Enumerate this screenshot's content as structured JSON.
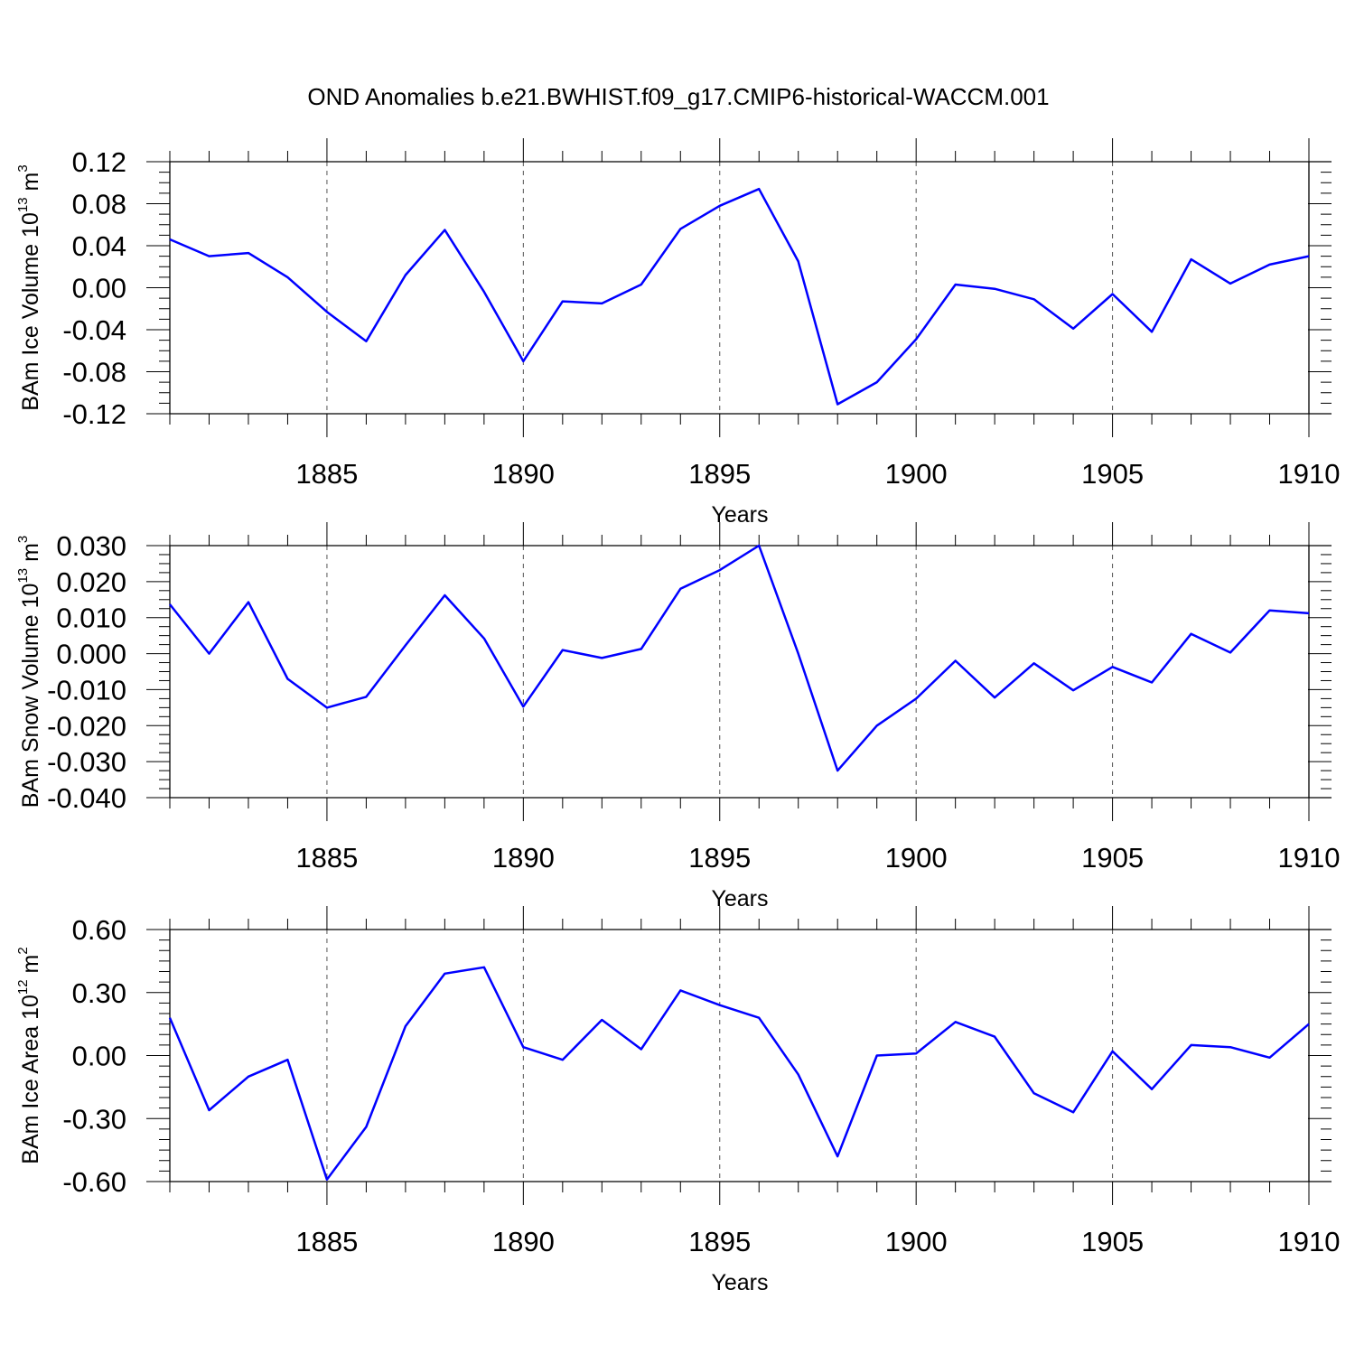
{
  "title": "OND Anomalies b.e21.BWHIST.f09_g17.CMIP6-historical-WACCM.001",
  "chart_data": [
    {
      "type": "line",
      "ylabel": {
        "base": "BAm Ice Volume 10",
        "sup": "13",
        "mid": " m",
        "sup2": "3"
      },
      "xlabel": "Years",
      "xlim": [
        1881,
        1910
      ],
      "ylim": [
        -0.12,
        0.12
      ],
      "xticks": [
        "1885",
        "1890",
        "1895",
        "1900",
        "1905",
        "1910"
      ],
      "yticks": [
        "0.12",
        "0.08",
        "0.04",
        "0.00",
        "-0.04",
        "-0.08",
        "-0.12"
      ],
      "grid": "dashed vertical lines at major x ticks",
      "color": "#0000ff",
      "x": [
        1881,
        1882,
        1883,
        1884,
        1885,
        1886,
        1887,
        1888,
        1889,
        1890,
        1891,
        1892,
        1893,
        1894,
        1895,
        1896,
        1897,
        1898,
        1899,
        1900,
        1901,
        1902,
        1903,
        1904,
        1905,
        1906,
        1907,
        1908,
        1909,
        1910
      ],
      "y": [
        0.046,
        0.03,
        0.033,
        0.01,
        -0.023,
        -0.051,
        0.012,
        0.055,
        -0.004,
        -0.07,
        -0.013,
        -0.015,
        0.003,
        0.056,
        0.078,
        0.094,
        0.025,
        -0.111,
        -0.09,
        -0.049,
        0.003,
        -0.001,
        -0.011,
        -0.039,
        -0.006,
        -0.042,
        0.027,
        0.004,
        0.022,
        0.03
      ]
    },
    {
      "type": "line",
      "ylabel": {
        "base": "BAm Snow Volume 10",
        "sup": "13",
        "mid": " m",
        "sup2": "3"
      },
      "xlabel": "Years",
      "xlim": [
        1881,
        1910
      ],
      "ylim": [
        -0.04,
        0.03
      ],
      "xticks": [
        "1885",
        "1890",
        "1895",
        "1900",
        "1905",
        "1910"
      ],
      "yticks": [
        "0.030",
        "0.020",
        "0.010",
        "0.000",
        "-0.010",
        "-0.020",
        "-0.030",
        "-0.040"
      ],
      "grid": "dashed vertical lines at major x ticks",
      "color": "#0000ff",
      "x": [
        1881,
        1882,
        1883,
        1884,
        1885,
        1886,
        1887,
        1888,
        1889,
        1890,
        1891,
        1892,
        1893,
        1894,
        1895,
        1896,
        1897,
        1898,
        1899,
        1900,
        1901,
        1902,
        1903,
        1904,
        1905,
        1906,
        1907,
        1908,
        1909,
        1910
      ],
      "y": [
        0.0137,
        0.0,
        0.0143,
        -0.007,
        -0.015,
        -0.012,
        0.0023,
        0.0162,
        0.0042,
        -0.0147,
        0.001,
        -0.0012,
        0.0013,
        0.018,
        0.0232,
        0.03,
        0.0,
        -0.0325,
        -0.02,
        -0.0125,
        -0.002,
        -0.0122,
        -0.0027,
        -0.0102,
        -0.0037,
        -0.008,
        0.0055,
        0.0003,
        0.012,
        0.0112
      ]
    },
    {
      "type": "line",
      "ylabel": {
        "base": "BAm Ice Area 10",
        "sup": "12",
        "mid": " m",
        "sup2": "2"
      },
      "xlabel": "Years",
      "xlim": [
        1881,
        1910
      ],
      "ylim": [
        -0.6,
        0.6
      ],
      "xticks": [
        "1885",
        "1890",
        "1895",
        "1900",
        "1905",
        "1910"
      ],
      "yticks": [
        "0.60",
        "0.30",
        "0.00",
        "-0.30",
        "-0.60"
      ],
      "grid": "dashed vertical lines at major x ticks",
      "color": "#0000ff",
      "x": [
        1881,
        1882,
        1883,
        1884,
        1885,
        1886,
        1887,
        1888,
        1889,
        1890,
        1891,
        1892,
        1893,
        1894,
        1895,
        1896,
        1897,
        1898,
        1899,
        1900,
        1901,
        1902,
        1903,
        1904,
        1905,
        1906,
        1907,
        1908,
        1909,
        1910
      ],
      "y": [
        0.18,
        -0.26,
        -0.1,
        -0.02,
        -0.59,
        -0.34,
        0.14,
        0.39,
        0.42,
        0.04,
        -0.02,
        0.17,
        0.03,
        0.31,
        0.24,
        0.18,
        -0.09,
        -0.48,
        0.0,
        0.01,
        0.16,
        0.09,
        -0.18,
        -0.27,
        0.02,
        -0.16,
        0.05,
        0.04,
        -0.01,
        0.15
      ]
    }
  ]
}
